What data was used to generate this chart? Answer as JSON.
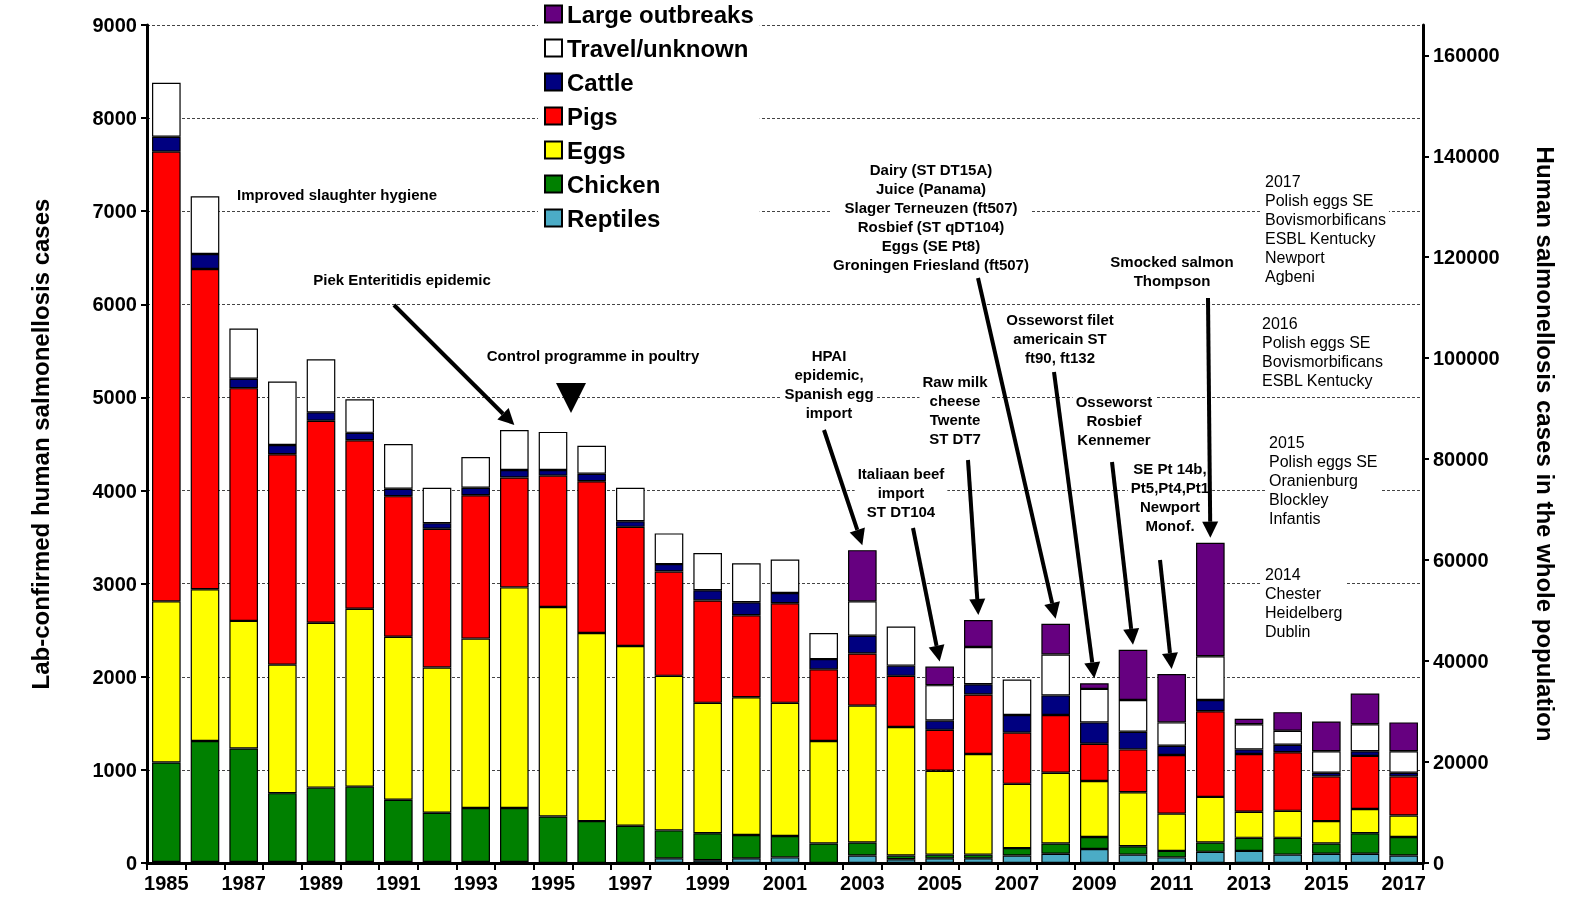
{
  "chart_data": {
    "type": "bar",
    "stacked": true,
    "ylabel": "Lab-confirmed human salmonellosis cases",
    "y2label": "Human salmonellosis cases in the whole population",
    "categories": [
      "1985",
      null,
      "1987",
      null,
      "1989",
      null,
      "1991",
      null,
      "1993",
      null,
      "1995",
      null,
      "1997",
      null,
      "1999",
      null,
      "2001",
      null,
      "2003",
      null,
      "2005",
      null,
      "2007",
      null,
      "2009",
      null,
      "2011",
      null,
      "2013",
      null,
      "2015",
      null,
      "2017"
    ],
    "ylim": [
      0,
      9000
    ],
    "yticks": [
      0,
      1000,
      2000,
      3000,
      4000,
      5000,
      6000,
      7000,
      8000,
      9000
    ],
    "y2lim": [
      0,
      166000
    ],
    "y2ticks": [
      0,
      20000,
      40000,
      60000,
      80000,
      100000,
      120000,
      140000,
      160000
    ],
    "grid": "y",
    "legend": "top",
    "series": [
      {
        "name": "Reptiles",
        "color": "#4bacc6",
        "values": [
          10,
          10,
          10,
          10,
          10,
          10,
          10,
          10,
          10,
          10,
          null,
          null,
          null,
          50,
          30,
          50,
          60,
          null,
          80,
          40,
          50,
          50,
          80,
          100,
          150,
          90,
          60,
          120,
          130,
          90,
          100,
          100,
          80
        ]
      },
      {
        "name": "Chicken",
        "color": "#008000",
        "values": [
          1070,
          1300,
          1220,
          740,
          800,
          810,
          670,
          530,
          580,
          580,
          500,
          450,
          400,
          300,
          290,
          250,
          230,
          210,
          140,
          40,
          40,
          40,
          80,
          110,
          130,
          90,
          70,
          100,
          140,
          180,
          110,
          220,
          200
        ]
      },
      {
        "name": "Eggs",
        "color": "#ffff00",
        "values": [
          1730,
          1630,
          1370,
          1380,
          1770,
          1910,
          1750,
          1560,
          1820,
          2370,
          2250,
          2020,
          1930,
          1660,
          1400,
          1480,
          1430,
          1100,
          1470,
          1380,
          900,
          1080,
          690,
          760,
          600,
          580,
          400,
          490,
          280,
          290,
          240,
          260,
          230
        ]
      },
      {
        "name": "Pigs",
        "color": "#ff0000",
        "values": [
          4830,
          3440,
          2500,
          2260,
          2170,
          1810,
          1510,
          1490,
          1540,
          1180,
          1410,
          1630,
          1280,
          1120,
          1100,
          880,
          1070,
          770,
          560,
          550,
          440,
          640,
          550,
          620,
          400,
          460,
          630,
          920,
          620,
          630,
          480,
          570,
          420
        ]
      },
      {
        "name": "Cattle",
        "color": "#000080",
        "values": [
          160,
          160,
          100,
          100,
          90,
          80,
          80,
          60,
          80,
          80,
          60,
          80,
          60,
          80,
          110,
          140,
          110,
          110,
          190,
          110,
          100,
          110,
          190,
          210,
          230,
          190,
          100,
          120,
          50,
          80,
          40,
          50,
          40
        ]
      },
      {
        "name": "Travel/unknown",
        "color": "#ffffff",
        "values": [
          580,
          620,
          540,
          680,
          570,
          360,
          480,
          380,
          330,
          430,
          410,
          300,
          360,
          330,
          400,
          420,
          360,
          280,
          370,
          420,
          380,
          400,
          380,
          440,
          360,
          340,
          250,
          470,
          270,
          150,
          230,
          290,
          230
        ]
      },
      {
        "name": "Large outbreaks",
        "color": "#660080",
        "values": [
          null,
          null,
          null,
          null,
          null,
          null,
          null,
          null,
          null,
          null,
          null,
          null,
          null,
          null,
          null,
          null,
          null,
          null,
          550,
          null,
          200,
          290,
          null,
          330,
          60,
          540,
          520,
          1220,
          60,
          200,
          320,
          330,
          310
        ]
      }
    ],
    "annotations": [
      "Improved slaughter hygiene",
      "Piek Enteritidis epidemic",
      "Control programme in poultry",
      "HPAI\nepidemic,\nSpanish egg\nimport",
      "Italiaan beef\nimport\nST DT104",
      "Raw milk\ncheese\nTwente\nST DT7",
      "Dairy (ST DT15A)\nJuice (Panama)\nSlager Terneuzen (ft507)\nRosbief (ST qDT104)\nEggs (SE Pt8)\nGroningen Friesland (ft507)",
      "Osseworst filet\namericain ST\nft90, ft132",
      "Osseworst\nRosbief\nKennemer",
      "SE Pt 14b,\nPt5,Pt4,Pt1\nNewport\nMonof.",
      "Smocked salmon\nThompson",
      "2017\nPolish eggs SE\nBovismorbificans\nESBL Kentucky\nNewport\nAgbeni",
      "2016\nPolish eggs SE\nBovismorbificans\nESBL Kentucky",
      "2015\nPolish eggs SE\nOranienburg\nBlockley\nInfantis",
      "2014\nChester\nHeidelberg\nDublin"
    ]
  }
}
